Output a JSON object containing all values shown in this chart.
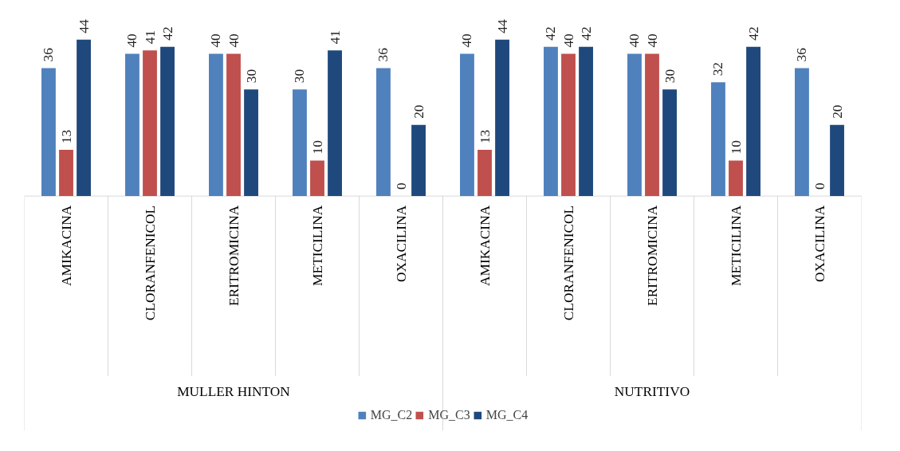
{
  "chart_data": {
    "type": "bar",
    "categories": [
      "AMIKACINA",
      "CLORANFENICOL",
      "ERITROMICINA",
      "METICILINA",
      "OXACILINA",
      "AMIKACINA",
      "CLORANFENICOL",
      "ERITROMICINA",
      "METICILINA",
      "OXACILINA"
    ],
    "annotations": [
      "MULLER HINTON",
      "NUTRITIVO"
    ],
    "series": [
      {
        "name": "MG_C2",
        "color": "#4f81bd",
        "values": [
          36,
          40,
          40,
          30,
          36,
          40,
          42,
          40,
          32,
          36
        ]
      },
      {
        "name": "MG_C3",
        "color": "#c0504d",
        "values": [
          13,
          41,
          40,
          10,
          0,
          13,
          40,
          40,
          10,
          0
        ]
      },
      {
        "name": "MG_C4",
        "color": "#1f497d",
        "values": [
          44,
          42,
          30,
          41,
          20,
          44,
          42,
          30,
          42,
          20
        ]
      }
    ],
    "data_labels": true,
    "legend": "bottom"
  }
}
